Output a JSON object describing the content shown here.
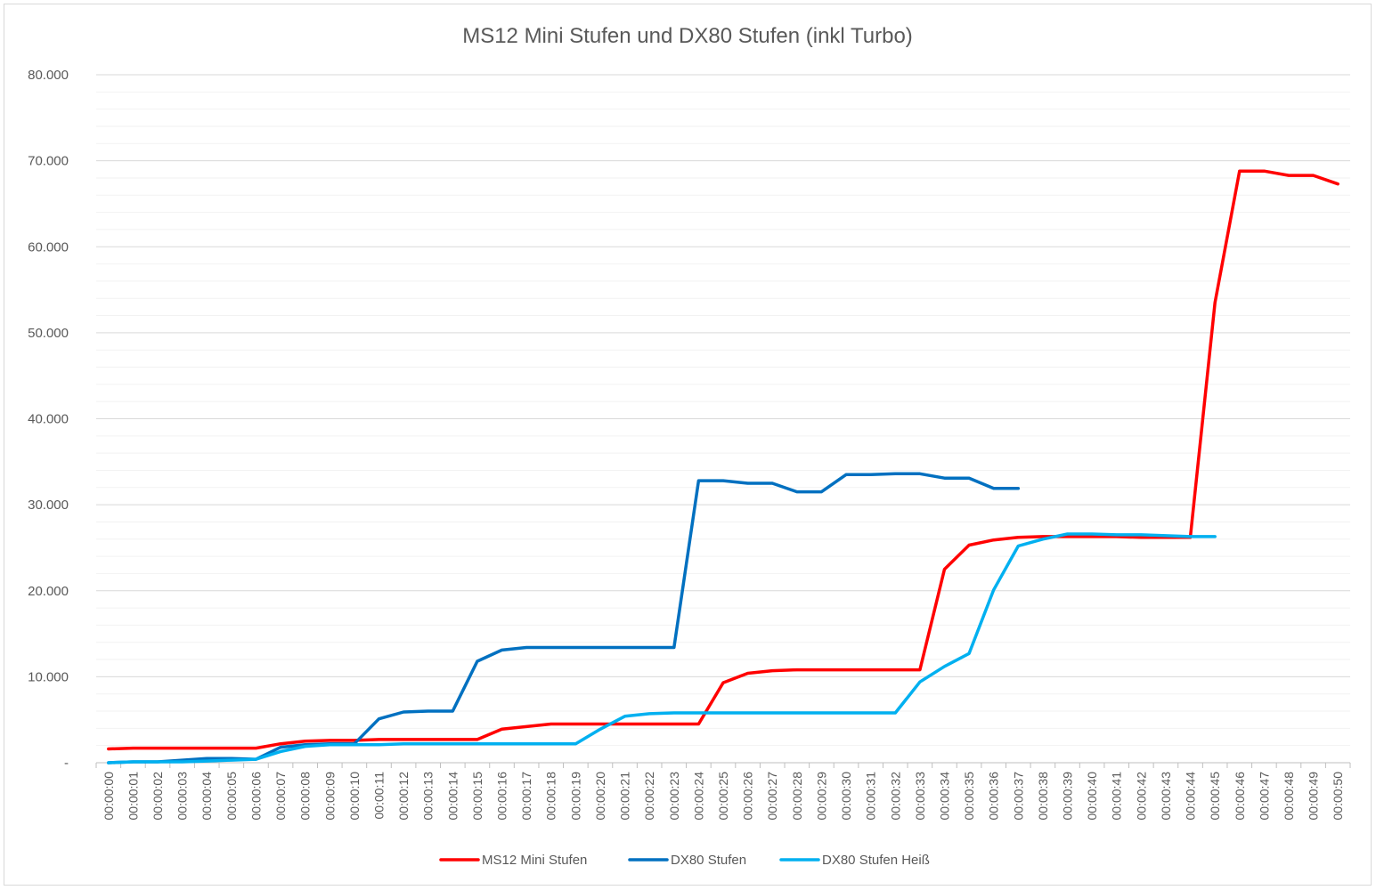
{
  "chart_data": {
    "type": "line",
    "title": "MS12 Mini Stufen und DX80 Stufen (inkl Turbo)",
    "xlabel": "",
    "ylabel": "",
    "ylim": [
      0,
      80000
    ],
    "y_ticks": [
      {
        "value": 0,
        "label": "-"
      },
      {
        "value": 10000,
        "label": "10.000"
      },
      {
        "value": 20000,
        "label": "20.000"
      },
      {
        "value": 30000,
        "label": "30.000"
      },
      {
        "value": 40000,
        "label": "40.000"
      },
      {
        "value": 50000,
        "label": "50.000"
      },
      {
        "value": 60000,
        "label": "60.000"
      },
      {
        "value": 70000,
        "label": "70.000"
      },
      {
        "value": 80000,
        "label": "80.000"
      }
    ],
    "grid": true,
    "minor_grid": true,
    "legend_position": "bottom",
    "categories": [
      "00:00:00",
      "00:00:01",
      "00:00:02",
      "00:00:03",
      "00:00:04",
      "00:00:05",
      "00:00:06",
      "00:00:07",
      "00:00:08",
      "00:00:09",
      "00:00:10",
      "00:00:11",
      "00:00:12",
      "00:00:13",
      "00:00:14",
      "00:00:15",
      "00:00:16",
      "00:00:17",
      "00:00:18",
      "00:00:19",
      "00:00:20",
      "00:00:21",
      "00:00:22",
      "00:00:23",
      "00:00:24",
      "00:00:25",
      "00:00:26",
      "00:00:27",
      "00:00:28",
      "00:00:29",
      "00:00:30",
      "00:00:31",
      "00:00:32",
      "00:00:33",
      "00:00:34",
      "00:00:35",
      "00:00:36",
      "00:00:37",
      "00:00:38",
      "00:00:39",
      "00:00:40",
      "00:00:41",
      "00:00:42",
      "00:00:43",
      "00:00:44",
      "00:00:45",
      "00:00:46",
      "00:00:47",
      "00:00:48",
      "00:00:49",
      "00:00:50"
    ],
    "series": [
      {
        "name": "MS12 Mini Stufen",
        "color": "#ff0000",
        "values": [
          1600,
          1700,
          1700,
          1700,
          1700,
          1700,
          1700,
          2200,
          2500,
          2600,
          2600,
          2700,
          2700,
          2700,
          2700,
          2700,
          3900,
          4200,
          4500,
          4500,
          4500,
          4500,
          4500,
          4500,
          4500,
          9300,
          10400,
          10700,
          10800,
          10800,
          10800,
          10800,
          10800,
          10800,
          22500,
          25300,
          25900,
          26200,
          26300,
          26300,
          26300,
          26300,
          26200,
          26200,
          26200,
          53500,
          68800,
          68800,
          68300,
          68300,
          67300
        ]
      },
      {
        "name": "DX80 Stufen",
        "color": "#0070c0",
        "values": [
          0,
          100,
          100,
          300,
          500,
          500,
          400,
          1800,
          2100,
          2200,
          2200,
          5100,
          5900,
          6000,
          6000,
          11800,
          13100,
          13400,
          13400,
          13400,
          13400,
          13400,
          13400,
          13400,
          32800,
          32800,
          32500,
          32500,
          31500,
          31500,
          33500,
          33500,
          33600,
          33600,
          33100,
          33100,
          31900,
          31900,
          null,
          null,
          null,
          null,
          null,
          null,
          null,
          null,
          null,
          null,
          null,
          null,
          null
        ]
      },
      {
        "name": "DX80 Stufen Heiß",
        "color": "#00b0f0",
        "values": [
          0,
          100,
          100,
          100,
          200,
          300,
          400,
          1300,
          1900,
          2100,
          2100,
          2100,
          2200,
          2200,
          2200,
          2200,
          2200,
          2200,
          2200,
          2200,
          3900,
          5400,
          5700,
          5800,
          5800,
          5800,
          5800,
          5800,
          5800,
          5800,
          5800,
          5800,
          5800,
          9400,
          11200,
          12700,
          20100,
          25200,
          26000,
          26600,
          26600,
          26500,
          26500,
          26400,
          26300,
          26300,
          null,
          null,
          null,
          null,
          null
        ]
      }
    ]
  }
}
